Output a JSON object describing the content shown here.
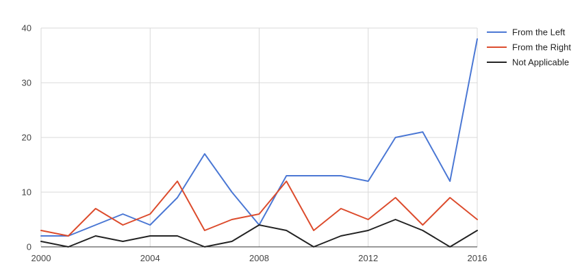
{
  "chart_data": {
    "type": "line",
    "title": "",
    "xlabel": "",
    "ylabel": "",
    "x": [
      2000,
      2001,
      2002,
      2003,
      2004,
      2005,
      2006,
      2007,
      2008,
      2009,
      2010,
      2011,
      2012,
      2013,
      2014,
      2015,
      2016
    ],
    "xlim": [
      2000,
      2016
    ],
    "ylim": [
      0,
      40
    ],
    "x_ticks": [
      "2000",
      "2004",
      "2008",
      "2012",
      "2016"
    ],
    "y_ticks": [
      "0",
      "10",
      "20",
      "30",
      "40"
    ],
    "grid": true,
    "legend_position": "right",
    "series": [
      {
        "name": "From the Left",
        "color": "#4a77d4",
        "values": [
          2,
          2,
          4,
          6,
          4,
          9,
          17,
          10,
          4,
          13,
          13,
          13,
          12,
          20,
          21,
          12,
          38
        ]
      },
      {
        "name": "From the Right",
        "color": "#dc4b2c",
        "values": [
          3,
          2,
          7,
          4,
          6,
          12,
          3,
          5,
          6,
          12,
          3,
          7,
          5,
          9,
          4,
          9,
          5
        ]
      },
      {
        "name": "Not Applicable",
        "color": "#222222",
        "values": [
          1,
          0,
          2,
          1,
          2,
          2,
          0,
          1,
          4,
          3,
          0,
          2,
          3,
          5,
          3,
          0,
          3
        ]
      }
    ]
  }
}
